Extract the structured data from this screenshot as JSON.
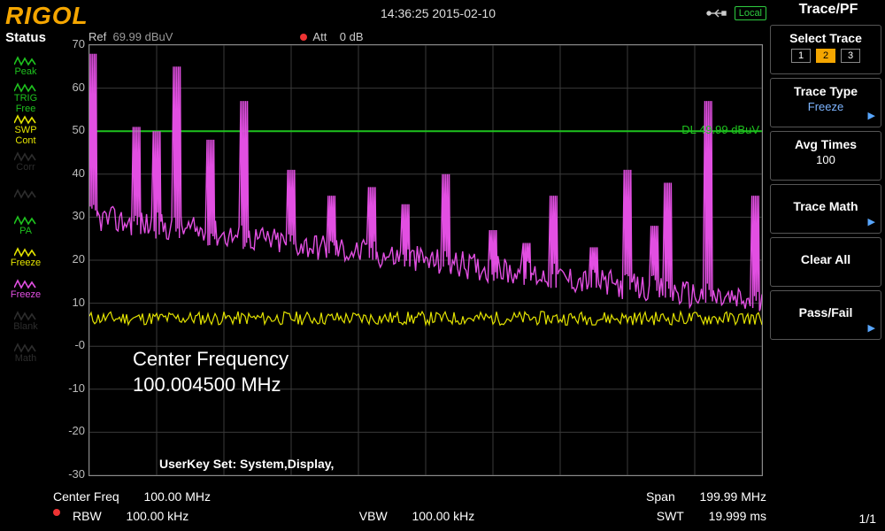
{
  "brand": "RIGOL",
  "top": {
    "datetime": "14:36:25 2015-02-10",
    "local_badge": "Local"
  },
  "menu": {
    "title": "Trace/PF",
    "select_trace": {
      "label": "Select Trace",
      "chips": [
        "1",
        "2",
        "3"
      ],
      "active_index": 1
    },
    "trace_type": {
      "label": "Trace Type",
      "value": "Freeze"
    },
    "avg_times": {
      "label": "Avg Times",
      "value": "100"
    },
    "trace_math": {
      "label": "Trace Math"
    },
    "clear_all": {
      "label": "Clear All"
    },
    "pass_fail": {
      "label": "Pass/Fail"
    },
    "page": "1/1"
  },
  "status": {
    "header": "Status",
    "items": [
      {
        "name": "peak",
        "label": "Peak",
        "color": "#1ec21e",
        "dim": true
      },
      {
        "name": "trig",
        "label": "TRIG",
        "sub": "Free",
        "color": "#1ec21e"
      },
      {
        "name": "swp",
        "label": "SWP",
        "sub": "Cont",
        "color": "#e3e300"
      },
      {
        "name": "corr",
        "label": "Corr",
        "color": "#2d2d2d",
        "dim": true
      },
      {
        "name": "gt",
        "label": "",
        "color": "#2d2d2d",
        "dim": true
      },
      {
        "name": "pa",
        "label": "PA",
        "color": "#1ec21e"
      },
      {
        "name": "freeze1",
        "label": "Freeze",
        "color": "#e3e300"
      },
      {
        "name": "freeze2",
        "label": "Freeze",
        "color": "#e24fe2"
      },
      {
        "name": "blank",
        "label": "Blank",
        "color": "#2d2d2d",
        "dim": true
      },
      {
        "name": "math",
        "label": "Math",
        "color": "#2d2d2d",
        "dim": true
      }
    ]
  },
  "ref_row": {
    "ref_label": "Ref",
    "ref_value": "69.99 dBuV",
    "att_label": "Att",
    "att_value": "0 dB"
  },
  "plot": {
    "type": "line",
    "ylim": [
      -30,
      70
    ],
    "ytick_step": 10,
    "yticks": [
      70,
      60,
      50,
      40,
      30,
      20,
      10,
      "-0",
      -10,
      -20,
      -30
    ],
    "xlim": [
      0,
      200
    ],
    "background_color": "#000000",
    "grid_color": "#3a3a3a",
    "border_color": "#8a8a8a",
    "dl_line": {
      "y": 50,
      "label": "DL 49.99 dBuV",
      "color": "#1ec21e"
    },
    "traces": {
      "noise_floor": {
        "color": "#e3e300",
        "width": 1.2,
        "base": 6.5,
        "jitter": 1.6,
        "seed": 11
      },
      "spectrum": {
        "color": "#e24fe2",
        "width": 1.4,
        "baseline_start": 30,
        "baseline_end": 10,
        "jitter": 3.2,
        "seed": 42,
        "spikes": [
          {
            "x": 1,
            "y": 68
          },
          {
            "x": 14,
            "y": 51
          },
          {
            "x": 20,
            "y": 50
          },
          {
            "x": 26,
            "y": 65
          },
          {
            "x": 36,
            "y": 48
          },
          {
            "x": 46,
            "y": 57
          },
          {
            "x": 60,
            "y": 41
          },
          {
            "x": 72,
            "y": 35
          },
          {
            "x": 84,
            "y": 37
          },
          {
            "x": 94,
            "y": 33
          },
          {
            "x": 106,
            "y": 40
          },
          {
            "x": 120,
            "y": 27
          },
          {
            "x": 130,
            "y": 24
          },
          {
            "x": 138,
            "y": 35
          },
          {
            "x": 150,
            "y": 23
          },
          {
            "x": 160,
            "y": 41
          },
          {
            "x": 168,
            "y": 28
          },
          {
            "x": 172,
            "y": 38
          },
          {
            "x": 184,
            "y": 57
          },
          {
            "x": 198,
            "y": 35
          }
        ]
      }
    },
    "center_freq_block": {
      "line1": "Center Frequency",
      "line2": "100.004500 MHz"
    },
    "userkey_text": "UserKey Set:    System,Display,"
  },
  "bottom": {
    "center_freq": {
      "label": "Center Freq",
      "value": "100.00 MHz"
    },
    "span": {
      "label": "Span",
      "value": "199.99 MHz"
    },
    "rbw": {
      "label": "RBW",
      "value": "100.00 kHz"
    },
    "vbw": {
      "label": "VBW",
      "value": "100.00 kHz"
    },
    "swt": {
      "label": "SWT",
      "value": "19.999 ms"
    }
  }
}
